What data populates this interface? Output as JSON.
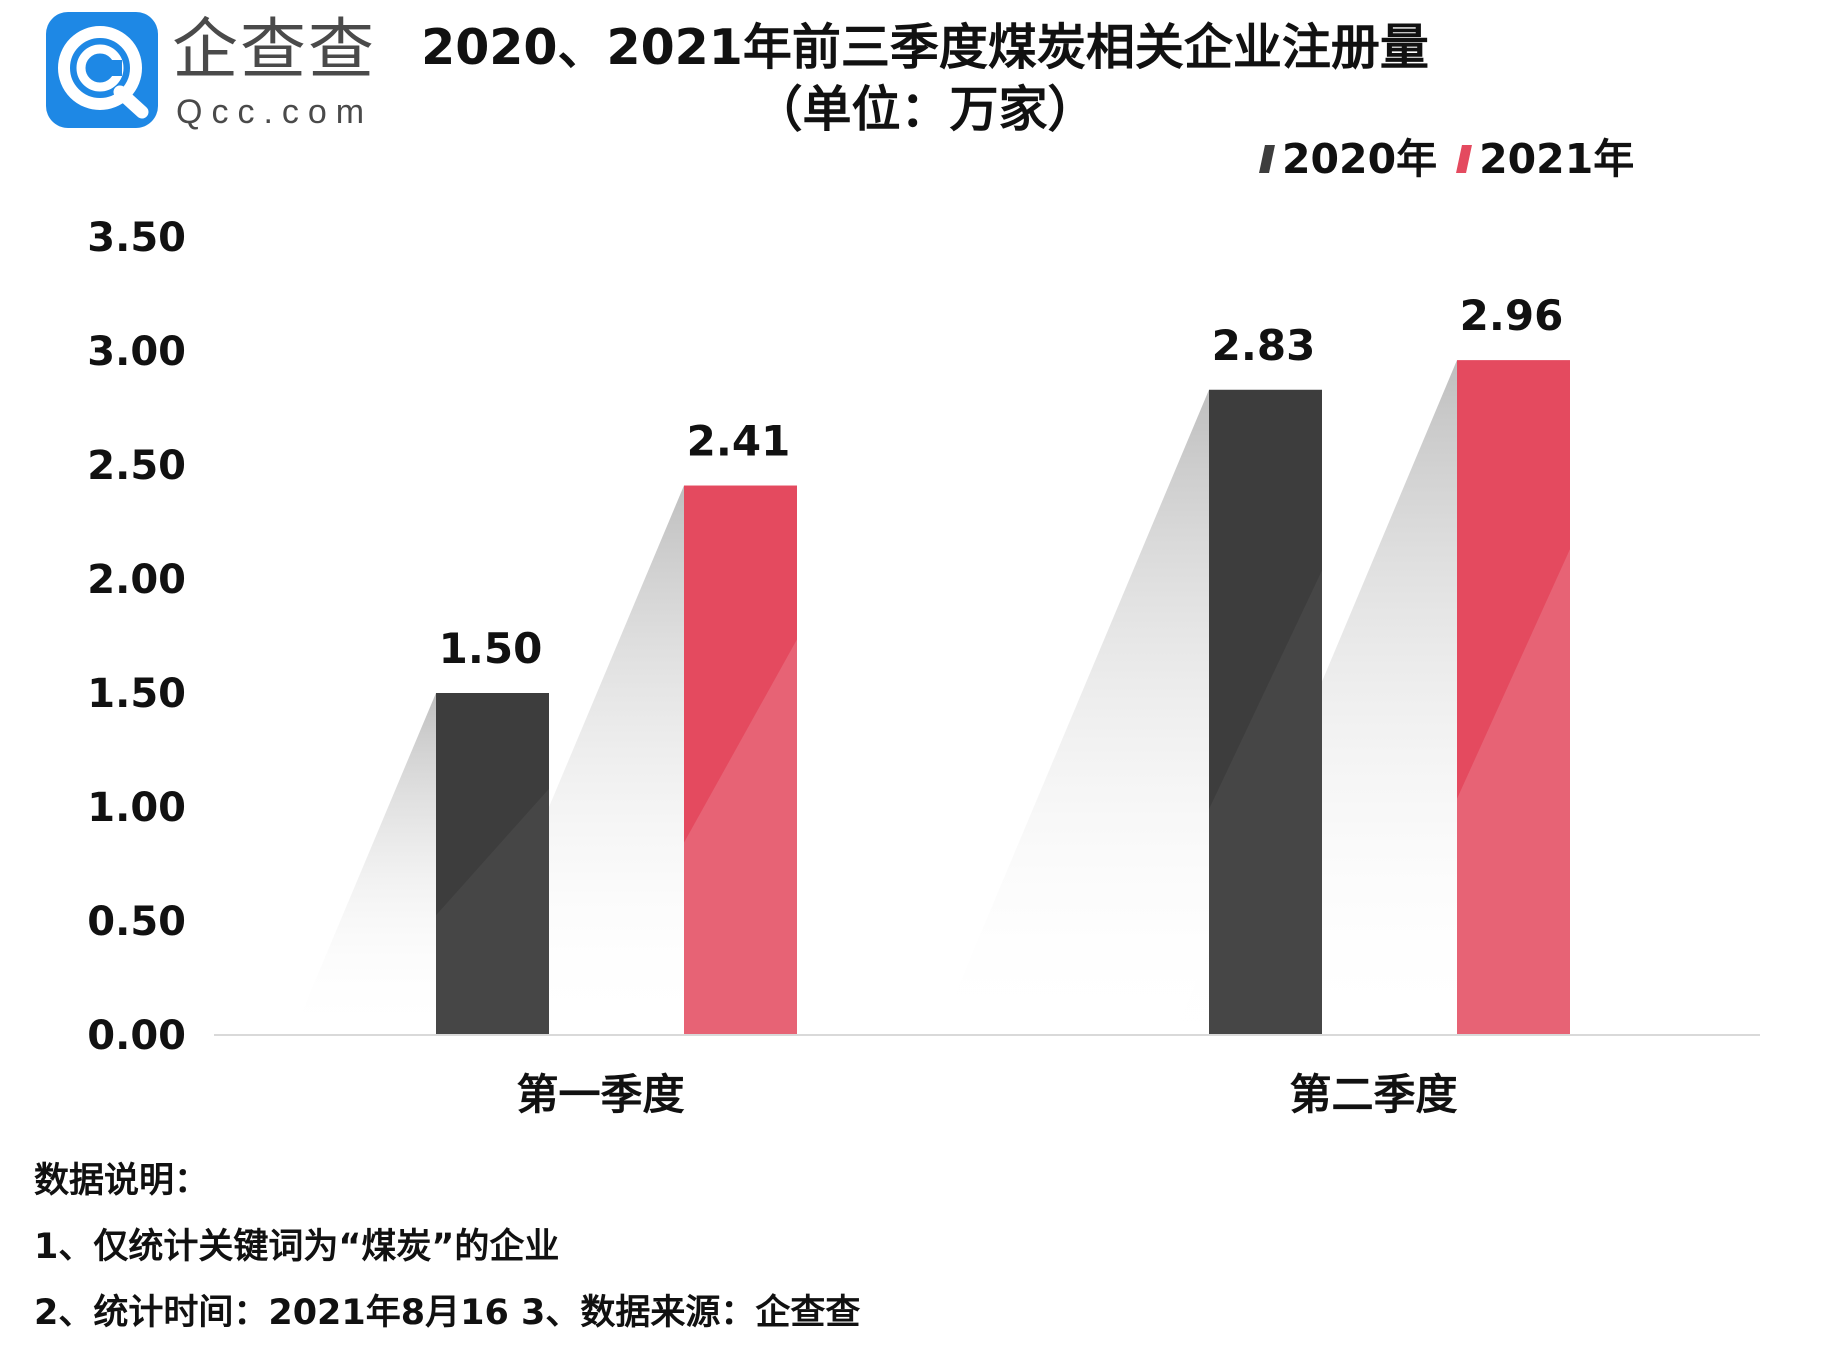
{
  "logo": {
    "brand_cn": "企查查",
    "brand_en": "Qcc.com"
  },
  "title": {
    "line1": "2020、2021年前三季度煤炭相关企业注册量",
    "line2": "（单位：万家）"
  },
  "colors": {
    "series_2020": "#3d3d3d",
    "series_2021": "#e44a5f",
    "axis": "#d9d9d9",
    "logo_blue": "#1e88e5"
  },
  "chart_data": {
    "type": "bar",
    "title": "2020、2021年前三季度煤炭相关企业注册量（单位：万家）",
    "categories": [
      "第一季度",
      "第二季度"
    ],
    "series": [
      {
        "name": "2020年",
        "values": [
          1.5,
          2.83
        ],
        "labels": [
          "1.50",
          "2.83"
        ],
        "color": "#3d3d3d"
      },
      {
        "name": "2021年",
        "values": [
          2.41,
          2.96
        ],
        "labels": [
          "2.41",
          "2.96"
        ],
        "color": "#e44a5f"
      }
    ],
    "ylim": [
      0,
      3.5
    ],
    "yticks": [
      "0.00",
      "0.50",
      "1.00",
      "1.50",
      "2.00",
      "2.50",
      "3.00",
      "3.50"
    ],
    "grid": false,
    "legend_position": "top-right"
  },
  "notes": {
    "heading": "数据说明：",
    "line1": "1、仅统计关键词为“煤炭”的企业",
    "line2": "2、统计时间：2021年8月16   3、数据来源：企查查"
  }
}
